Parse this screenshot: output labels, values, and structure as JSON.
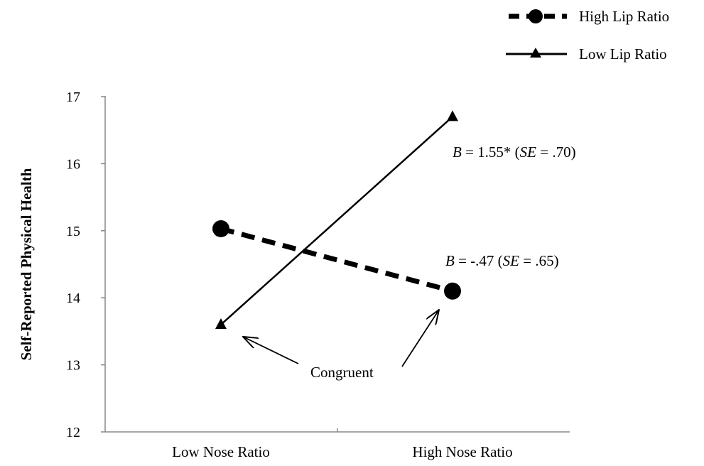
{
  "chart_data": {
    "type": "line",
    "title": "",
    "xlabel": "",
    "ylabel": "Self-Reported Physical Health",
    "categories": [
      "Low Nose Ratio",
      "High Nose Ratio"
    ],
    "ylim": [
      12,
      17
    ],
    "yticks": [
      "12",
      "13",
      "14",
      "15",
      "16",
      "17"
    ],
    "grid": false,
    "legend_position": "top-right",
    "series": [
      {
        "name": "High Lip Ratio",
        "values": [
          15.03,
          14.1
        ],
        "line_style": "dashed",
        "marker": "circle",
        "color": "#000000"
      },
      {
        "name": "Low Lip Ratio",
        "values": [
          13.6,
          16.7
        ],
        "line_style": "solid",
        "marker": "triangle",
        "color": "#000000"
      }
    ],
    "annotations": {
      "low_lip": {
        "b_label": "B",
        "b_value": " = 1.55* (",
        "se_label": "SE",
        "se_value": " = .70)"
      },
      "high_lip": {
        "b_label": "B",
        "b_value": " = -.47 (",
        "se_label": "SE",
        "se_value": " = .65)"
      },
      "congruent": "Congruent"
    }
  }
}
